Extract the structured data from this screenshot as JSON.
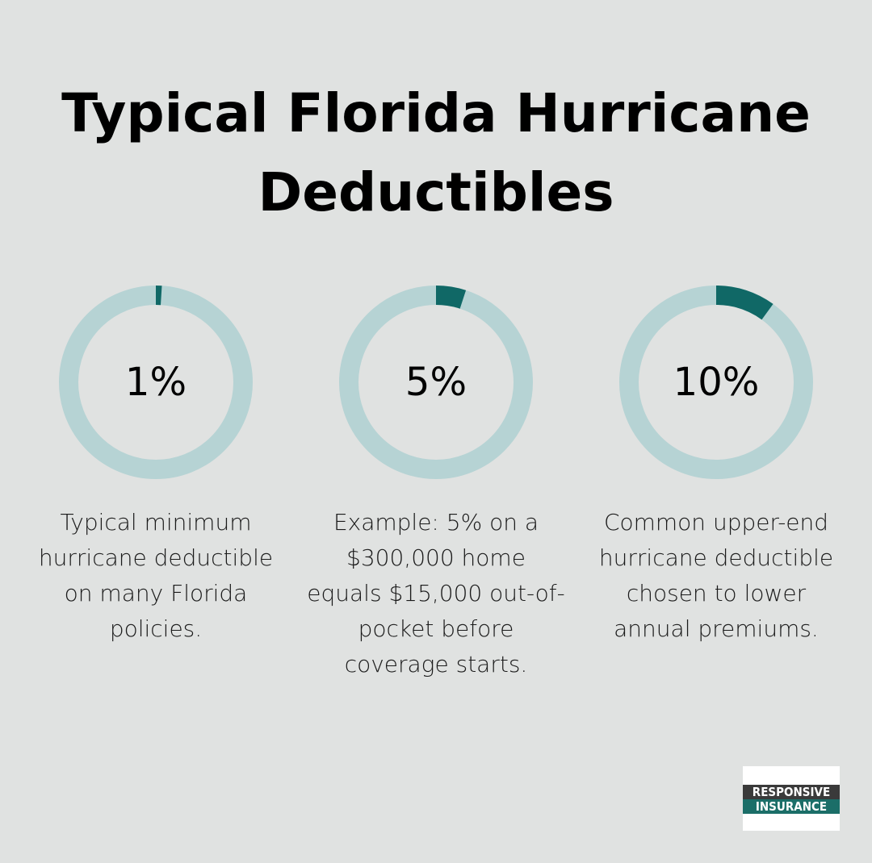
{
  "title": {
    "line1": "Typical Florida Hurricane",
    "line2": "Deductibles"
  },
  "colors": {
    "background": "#e0e2e1",
    "track": "#b6d3d4",
    "fill": "#106866"
  },
  "chart_data": {
    "type": "pie",
    "charts": [
      {
        "value": 1,
        "label": "1%",
        "description": "Typical minimum hurricane deductible on many Florida policies."
      },
      {
        "value": 5,
        "label": "5%",
        "description": "Example: 5% on a $300,000 home equals $15,000 out-of-pocket before coverage starts."
      },
      {
        "value": 10,
        "label": "10%",
        "description": "Common upper-end hurricane deductible chosen to lower annual premiums."
      }
    ],
    "max": 100
  },
  "logo": {
    "line1": "RESPONSIVE",
    "line2": "INSURANCE"
  }
}
